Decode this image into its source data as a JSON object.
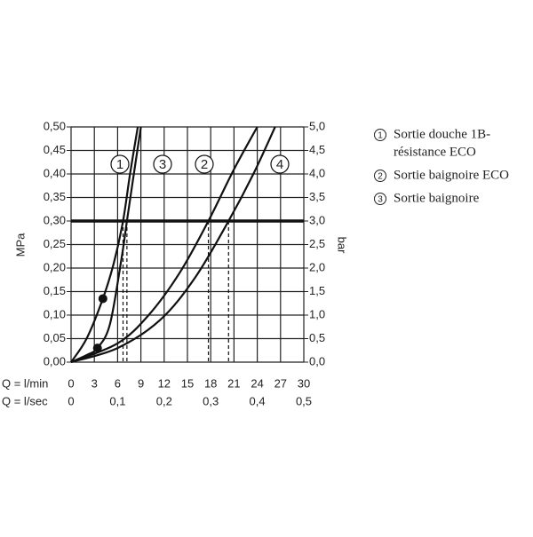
{
  "chart_data": {
    "type": "line",
    "xlabel": "Q = l/min",
    "x2label": "Q = l/sec",
    "ylabel": "MPa",
    "y2label": "bar",
    "xlim": [
      0,
      30
    ],
    "xticks": [
      0,
      3,
      6,
      9,
      12,
      15,
      18,
      21,
      24,
      27,
      30
    ],
    "x2lim": [
      0,
      0.5
    ],
    "x2ticks": [
      0,
      {
        "value": 0.1,
        "label": "0,1"
      },
      {
        "value": 0.2,
        "label": "0,2"
      },
      {
        "value": 0.3,
        "label": "0,3"
      },
      {
        "value": 0.4,
        "label": "0,4"
      },
      {
        "value": 0.5,
        "label": "0,5"
      }
    ],
    "ylim": [
      0,
      0.5
    ],
    "yticks": [
      {
        "value": 0,
        "label": "0,00"
      },
      {
        "value": 0.05,
        "label": "0,05"
      },
      {
        "value": 0.1,
        "label": "0,10"
      },
      {
        "value": 0.15,
        "label": "0,15"
      },
      {
        "value": 0.2,
        "label": "0,20"
      },
      {
        "value": 0.25,
        "label": "0,25"
      },
      {
        "value": 0.3,
        "label": "0,30"
      },
      {
        "value": 0.35,
        "label": "0,35"
      },
      {
        "value": 0.4,
        "label": "0,40"
      },
      {
        "value": 0.45,
        "label": "0,45"
      },
      {
        "value": 0.5,
        "label": "0,50"
      }
    ],
    "y2lim": [
      0,
      5
    ],
    "y2ticks": [
      {
        "value": 0,
        "label": "0,0"
      },
      {
        "value": 0.5,
        "label": "0,5"
      },
      {
        "value": 1,
        "label": "1,0"
      },
      {
        "value": 1.5,
        "label": "1,5"
      },
      {
        "value": 2,
        "label": "2,0"
      },
      {
        "value": 2.5,
        "label": "2,5"
      },
      {
        "value": 3,
        "label": "3,0"
      },
      {
        "value": 3.5,
        "label": "3,5"
      },
      {
        "value": 4,
        "label": "4,0"
      },
      {
        "value": 4.5,
        "label": "4,5"
      },
      {
        "value": 5,
        "label": "5,0"
      }
    ],
    "grid": true,
    "color": "#111",
    "reference_y": 0.3,
    "reference_x": [
      6.7,
      7.2,
      17.7,
      20.3
    ],
    "series": [
      {
        "label": "1",
        "x": [
          0,
          2,
          4.1,
          5.5,
          6.7,
          7.6,
          8.6
        ],
        "values": [
          0,
          0.05,
          0.135,
          0.21,
          0.3,
          0.4,
          0.5
        ]
      },
      {
        "label": "3",
        "x": [
          0,
          2,
          3.4,
          5,
          6.5,
          7.2,
          8,
          9
        ],
        "values": [
          0,
          0.015,
          0.03,
          0.08,
          0.22,
          0.3,
          0.39,
          0.5
        ]
      },
      {
        "label": "2",
        "x": [
          0,
          6,
          10,
          14,
          17.7,
          21,
          24
        ],
        "values": [
          0,
          0.04,
          0.1,
          0.19,
          0.3,
          0.41,
          0.5
        ]
      },
      {
        "label": "4",
        "x": [
          0,
          6,
          11.5,
          16,
          20.3,
          23.5,
          26.3
        ],
        "values": [
          0,
          0.03,
          0.09,
          0.18,
          0.3,
          0.4,
          0.5
        ]
      }
    ],
    "points": [
      {
        "x": 4.1,
        "y": 0.135
      },
      {
        "x": 3.4,
        "y": 0.03
      }
    ],
    "legend": [
      {
        "number": "1",
        "lines": [
          "Sortie douche 1B-",
          "résistance ECO"
        ]
      },
      {
        "number": "2",
        "lines": [
          "Sortie baignoire ECO"
        ]
      },
      {
        "number": "3",
        "lines": [
          "Sortie baignoire"
        ]
      }
    ]
  }
}
